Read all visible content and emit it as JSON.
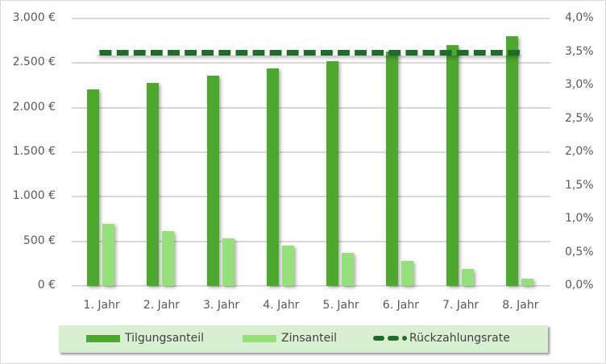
{
  "chart_data": {
    "type": "bar",
    "title": "",
    "xlabel": "",
    "ylabel": "",
    "categories": [
      "1. Jahr",
      "2. Jahr",
      "3. Jahr",
      "4. Jahr",
      "5. Jahr",
      "6. Jahr",
      "7. Jahr",
      "8. Jahr"
    ],
    "series": [
      {
        "name": "Tilgungsanteil",
        "type": "bar",
        "axis": "left",
        "color": "#4ea72e",
        "values": [
          2205,
          2277,
          2358,
          2439,
          2525,
          2629,
          2701,
          2800
        ]
      },
      {
        "name": "Zinsanteil",
        "type": "bar",
        "axis": "left",
        "color": "#96e07b",
        "values": [
          696,
          614,
          533,
          452,
          370,
          280,
          190,
          81
        ]
      },
      {
        "name": "Rückzahlungsrate",
        "type": "line",
        "style": "dashed",
        "axis": "right",
        "color": "#1e6b2a",
        "values": [
          3.5,
          3.5,
          3.5,
          3.5,
          3.5,
          3.5,
          3.5,
          3.5
        ]
      }
    ],
    "ylim": [
      0,
      3000
    ],
    "y2lim": [
      0,
      4.0
    ],
    "y_ticks": [
      "0 €",
      "500 €",
      "1.000 €",
      "1.500 €",
      "2.000 €",
      "2.500 €",
      "3.000 €"
    ],
    "y2_ticks": [
      "0,0%",
      "0,5%",
      "1,0%",
      "1,5%",
      "2,0%",
      "2,5%",
      "3,0%",
      "3,5%",
      "4,0%"
    ],
    "grid": true,
    "legend_position": "bottom"
  },
  "legend": {
    "items": [
      "Tilgungsanteil",
      "Zinsanteil",
      "Rückzahlungsrate"
    ]
  }
}
